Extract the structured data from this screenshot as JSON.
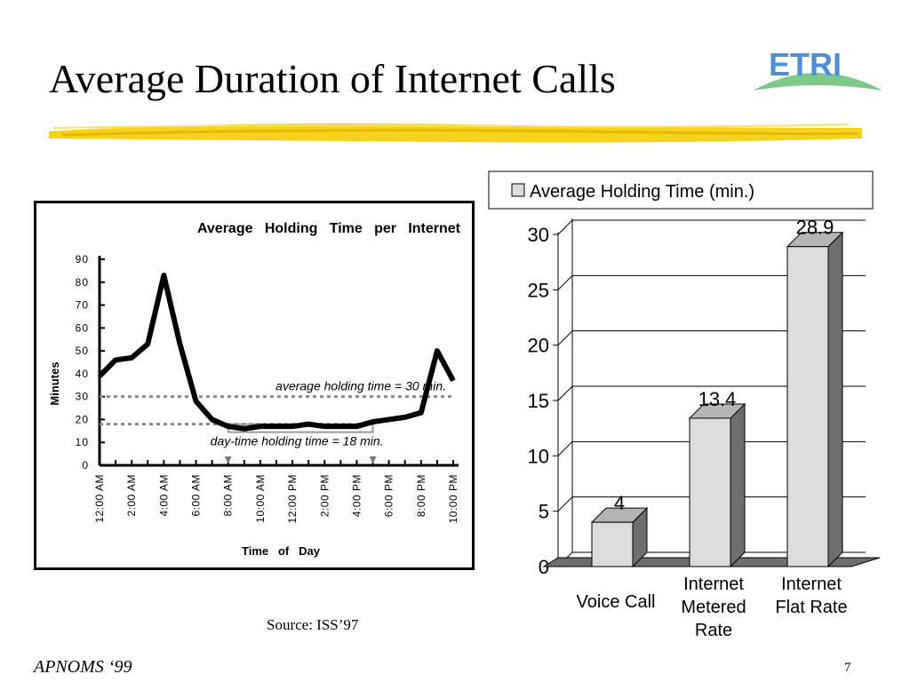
{
  "slide": {
    "title": "Average Duration of Internet Calls",
    "logo_text": "ETRI",
    "source": "Source: ISS’97",
    "footer": "APNOMS ‘99",
    "page_number": "7"
  },
  "chart_data": [
    {
      "type": "line",
      "title": "Average   Holding   Time   per   Internet",
      "xlabel": "Time   of   Day",
      "ylabel": "Minutes",
      "ylim": [
        0,
        90
      ],
      "yticks": [
        "0",
        "10",
        "20",
        "30",
        "40",
        "50",
        "60",
        "70",
        "80",
        "90"
      ],
      "xlim": [
        0,
        22
      ],
      "xticks": [
        "12:00 AM",
        "2:00 AM",
        "4:00 AM",
        "6:00 AM",
        "8:00 AM",
        "10:00 AM",
        "12:00 PM",
        "2:00 PM",
        "4:00 PM",
        "6:00 PM",
        "8:00 PM",
        "10:00 PM"
      ],
      "series": [
        {
          "x": [
            0,
            1,
            2,
            3,
            4,
            5,
            6,
            7,
            8,
            9,
            10,
            11,
            12,
            13,
            14,
            15,
            16,
            17,
            18,
            19,
            20,
            21,
            22
          ],
          "y": [
            39,
            46,
            47,
            53,
            83,
            53,
            28,
            20,
            17,
            16,
            17,
            17,
            17,
            18,
            17,
            17,
            17,
            19,
            20,
            21,
            23,
            50,
            37
          ]
        }
      ],
      "reference_lines": [
        {
          "value": 30,
          "label": "average holding time = 30 min."
        },
        {
          "value": 18,
          "label": "day-time holding time = 18 min."
        }
      ],
      "grid": false
    },
    {
      "type": "bar",
      "categories": [
        "Voice Call",
        "Internet Metered Rate",
        "Internet Flat Rate"
      ],
      "series": [
        {
          "name": "Average Holding Time (min.)",
          "values": [
            4,
            13.4,
            28.9
          ]
        }
      ],
      "data_labels": [
        "4",
        "13.4",
        "28.9"
      ],
      "ylim": [
        0,
        30
      ],
      "yticks": [
        "0",
        "5",
        "10",
        "15",
        "20",
        "25",
        "30"
      ],
      "legend": "top",
      "grid": true,
      "colors": {
        "bar_face": "#dcdcdc",
        "bar_side": "#6e6e6e",
        "bar_top": "#b4b4b4"
      }
    }
  ]
}
